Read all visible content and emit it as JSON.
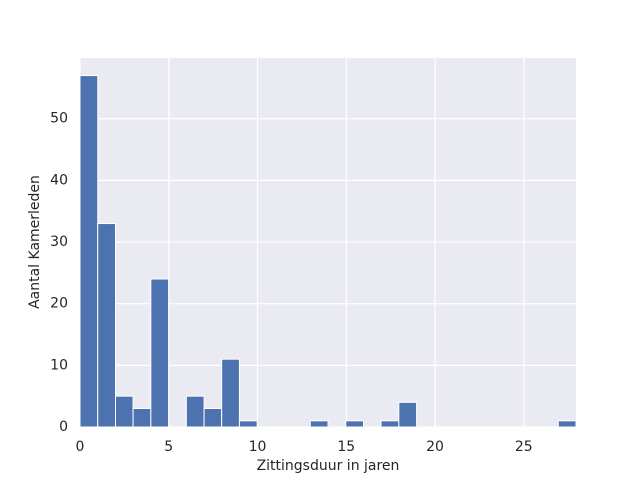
{
  "chart_data": {
    "type": "histogram",
    "x_label": "Zittingsduur in jaren",
    "y_label": "Aantal Kamerleden",
    "bins": [
      0,
      1.0,
      2.0,
      2.99,
      3.99,
      4.99,
      5.99,
      6.99,
      7.98,
      8.98,
      9.98,
      10.98,
      11.97,
      12.97,
      13.97,
      14.97,
      15.97,
      16.96,
      17.96,
      18.96,
      19.96,
      20.96,
      21.95,
      22.95,
      23.95,
      24.95,
      25.94,
      26.94,
      27.94
    ],
    "values": [
      57,
      33,
      5,
      3,
      24,
      0,
      5,
      3,
      11,
      1,
      0,
      0,
      0,
      1,
      0,
      1,
      0,
      1,
      4,
      0,
      0,
      0,
      0,
      0,
      0,
      0,
      0,
      1
    ],
    "color": "#4c72b0",
    "xlim": [
      0,
      27.94
    ],
    "xticks": [
      0,
      5,
      10,
      15,
      20,
      25
    ],
    "ylim": [
      0,
      59.85
    ],
    "yticks": [
      0,
      10,
      20,
      30,
      40,
      50
    ],
    "grid": true
  }
}
